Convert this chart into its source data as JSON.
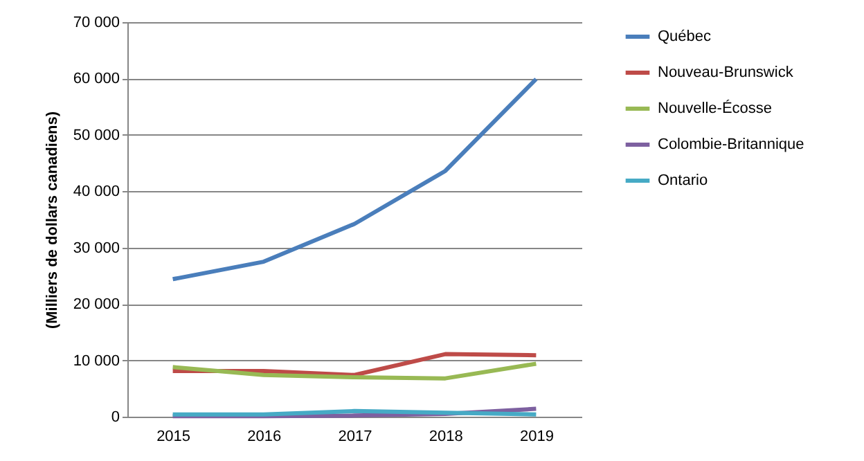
{
  "chart_data": {
    "type": "line",
    "ylabel": "(Milliers de dollars canadiens)",
    "categories": [
      "2015",
      "2016",
      "2017",
      "2018",
      "2019"
    ],
    "series": [
      {
        "name": "Québec",
        "color": "#4a7ebb",
        "values": [
          24400,
          27500,
          34200,
          43600,
          59900
        ]
      },
      {
        "name": "Nouveau-Brunswick",
        "color": "#be4b48",
        "values": [
          8100,
          8100,
          7400,
          11100,
          10900
        ]
      },
      {
        "name": "Nouvelle-Écosse",
        "color": "#98b954",
        "values": [
          8800,
          7400,
          7000,
          6800,
          9400
        ]
      },
      {
        "name": "Colombie-Britannique",
        "color": "#7d60a0",
        "values": [
          100,
          100,
          200,
          500,
          1400
        ]
      },
      {
        "name": "Ontario",
        "color": "#46aac5",
        "values": [
          400,
          400,
          1000,
          700,
          400
        ]
      }
    ],
    "ylim": [
      0,
      70000
    ],
    "yticks": [
      0,
      10000,
      20000,
      30000,
      40000,
      50000,
      60000,
      70000
    ],
    "grid": "y",
    "legend": "right",
    "marker": "none",
    "line_style": "solid"
  }
}
